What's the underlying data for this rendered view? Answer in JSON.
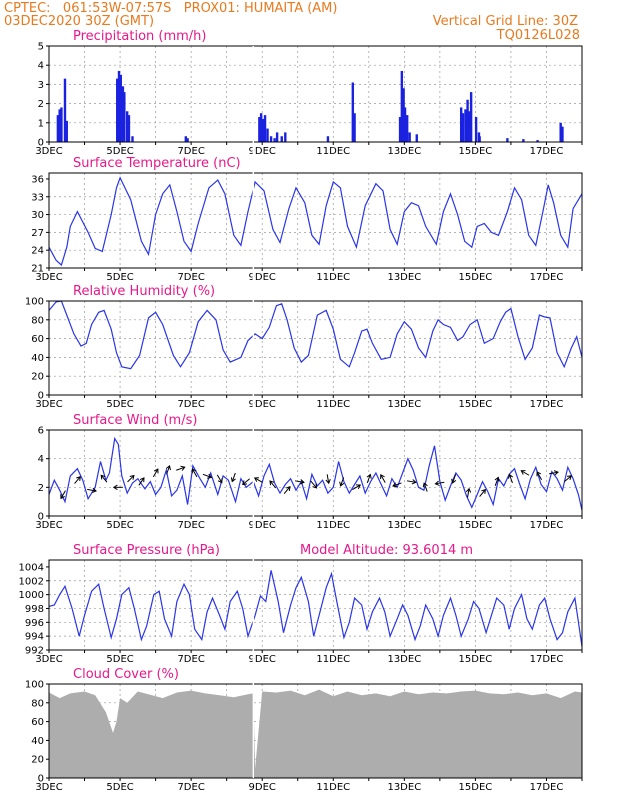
{
  "header": {
    "line1": "CPTEC:   061:53W-07:57S   PROX01: HUMAITA (AM)",
    "line2_left": "03DEC2020 30Z (GMT)",
    "line2_right": "Vertical Grid Line: 30Z",
    "line3_right": "TQ0126L028"
  },
  "colors": {
    "header": "#e87a1e",
    "title": "#e8188a",
    "series": "#2a35e8",
    "cloud": "#adadad"
  },
  "x_tick_labels": [
    "3DEC",
    "5DEC",
    "7DEC",
    "9DEC",
    "11DEC",
    "13DEC",
    "15DEC",
    "17DEC"
  ],
  "chart_data": [
    {
      "type": "bar",
      "title": "Precipitation (mm/h)",
      "ylim": [
        0,
        5
      ],
      "yticks": [
        0,
        1,
        2,
        3,
        4,
        5
      ],
      "xlim": [
        3.0,
        18.0
      ],
      "x": [
        3.25,
        3.3,
        3.35,
        3.45,
        3.5,
        4.92,
        4.97,
        5.02,
        5.08,
        5.12,
        5.2,
        5.25,
        5.35,
        6.85,
        6.9,
        8.92,
        8.97,
        9.02,
        9.08,
        9.15,
        9.25,
        9.35,
        9.42,
        9.55,
        9.65,
        10.85,
        11.55,
        11.6,
        12.88,
        12.93,
        12.98,
        13.02,
        13.08,
        13.15,
        13.35,
        14.6,
        14.65,
        14.72,
        14.78,
        14.82,
        14.88,
        15.02,
        15.1,
        15.12,
        15.9,
        16.35,
        16.75,
        17.4,
        17.45
      ],
      "values": [
        1.4,
        1.7,
        1.8,
        3.3,
        1.1,
        3.3,
        3.7,
        3.5,
        2.9,
        2.6,
        1.6,
        1.4,
        0.3,
        0.3,
        0.2,
        1.3,
        1.5,
        1.2,
        1.4,
        0.7,
        0.3,
        0.2,
        0.5,
        0.3,
        0.5,
        0.3,
        3.1,
        1.5,
        1.3,
        3.7,
        2.8,
        1.8,
        1.4,
        0.5,
        0.4,
        1.8,
        1.5,
        1.7,
        2.2,
        1.6,
        2.6,
        1.3,
        0.5,
        0.3,
        0.2,
        0.15,
        0.1,
        1.0,
        0.8
      ]
    },
    {
      "type": "line",
      "title": "Surface Temperature (nC)",
      "ylim": [
        21,
        37
      ],
      "yticks": [
        21,
        24,
        27,
        30,
        33,
        36
      ],
      "xlim": [
        3.0,
        18.0
      ],
      "x": [
        3.0,
        3.2,
        3.35,
        3.5,
        3.6,
        3.8,
        4.1,
        4.3,
        4.5,
        4.75,
        4.9,
        5.0,
        5.3,
        5.6,
        5.8,
        6.0,
        6.2,
        6.4,
        6.6,
        6.8,
        7.0,
        7.2,
        7.5,
        7.75,
        7.95,
        8.2,
        8.4,
        8.6,
        8.8,
        9.05,
        9.3,
        9.5,
        9.75,
        9.95,
        10.2,
        10.4,
        10.6,
        10.8,
        11.0,
        11.2,
        11.4,
        11.65,
        11.9,
        12.2,
        12.4,
        12.6,
        12.8,
        13.0,
        13.2,
        13.4,
        13.6,
        13.9,
        14.1,
        14.3,
        14.5,
        14.7,
        14.9,
        15.05,
        15.25,
        15.45,
        15.65,
        15.9,
        16.1,
        16.3,
        16.5,
        16.7,
        16.9,
        17.05,
        17.2,
        17.4,
        17.6,
        17.75,
        18.0
      ],
      "values": [
        24.5,
        22.3,
        21.5,
        24.5,
        28.0,
        30.5,
        27.0,
        24.3,
        23.8,
        30.0,
        34.5,
        36.2,
        32.5,
        25.5,
        23.3,
        30.0,
        33.5,
        35.0,
        30.5,
        25.5,
        23.8,
        28.5,
        34.5,
        35.8,
        33.5,
        26.5,
        24.8,
        30.5,
        35.5,
        34.0,
        27.5,
        25.3,
        31.0,
        34.5,
        32.0,
        26.5,
        25.0,
        31.5,
        35.5,
        34.5,
        28.0,
        24.5,
        31.5,
        35.2,
        34.0,
        27.5,
        25.0,
        30.5,
        32.0,
        31.5,
        28.0,
        25.0,
        30.5,
        33.5,
        30.0,
        25.5,
        24.5,
        28.0,
        28.5,
        27.0,
        26.5,
        30.5,
        34.5,
        32.5,
        26.5,
        24.8,
        30.5,
        35.0,
        32.0,
        26.5,
        24.5,
        31.0,
        33.5
      ]
    },
    {
      "type": "line",
      "title": "Relative Humidity (%)",
      "ylim": [
        0,
        100
      ],
      "yticks": [
        0,
        20,
        40,
        60,
        80,
        100
      ],
      "xlim": [
        3.0,
        18.0
      ],
      "x": [
        3.0,
        3.2,
        3.35,
        3.5,
        3.7,
        3.9,
        4.05,
        4.2,
        4.4,
        4.55,
        4.75,
        4.9,
        5.05,
        5.3,
        5.55,
        5.8,
        6.0,
        6.2,
        6.5,
        6.7,
        6.95,
        7.2,
        7.45,
        7.7,
        7.9,
        8.1,
        8.4,
        8.6,
        8.8,
        9.0,
        9.2,
        9.4,
        9.55,
        9.7,
        9.9,
        10.1,
        10.3,
        10.55,
        10.8,
        11.0,
        11.2,
        11.45,
        11.6,
        11.8,
        11.95,
        12.1,
        12.35,
        12.6,
        12.8,
        13.0,
        13.2,
        13.4,
        13.6,
        13.8,
        13.95,
        14.1,
        14.3,
        14.5,
        14.65,
        14.85,
        15.05,
        15.25,
        15.5,
        15.7,
        15.85,
        16.0,
        16.2,
        16.4,
        16.6,
        16.8,
        16.95,
        17.1,
        17.3,
        17.5,
        17.7,
        17.85,
        18.0
      ],
      "values": [
        90,
        99,
        100,
        85,
        65,
        52,
        55,
        75,
        88,
        90,
        70,
        45,
        30,
        28,
        42,
        82,
        88,
        75,
        42,
        30,
        45,
        78,
        90,
        80,
        48,
        35,
        40,
        58,
        65,
        60,
        72,
        95,
        97,
        80,
        50,
        35,
        42,
        85,
        90,
        70,
        38,
        30,
        45,
        68,
        70,
        55,
        38,
        40,
        65,
        78,
        70,
        50,
        40,
        68,
        80,
        75,
        72,
        58,
        62,
        75,
        80,
        55,
        60,
        78,
        88,
        92,
        62,
        38,
        50,
        85,
        83,
        82,
        45,
        30,
        50,
        62,
        40
      ]
    },
    {
      "type": "line",
      "title": "Surface Wind (m/s)",
      "ylim": [
        0,
        6
      ],
      "yticks": [
        0,
        2,
        4,
        6
      ],
      "xlim": [
        3.0,
        18.0
      ],
      "x": [
        3.0,
        3.15,
        3.3,
        3.45,
        3.6,
        3.8,
        3.95,
        4.1,
        4.3,
        4.45,
        4.6,
        4.7,
        4.85,
        4.95,
        5.05,
        5.2,
        5.35,
        5.5,
        5.7,
        5.85,
        6.0,
        6.15,
        6.3,
        6.45,
        6.6,
        6.75,
        6.9,
        7.05,
        7.25,
        7.4,
        7.55,
        7.75,
        7.9,
        8.05,
        8.25,
        8.4,
        8.55,
        8.75,
        8.9,
        9.05,
        9.2,
        9.35,
        9.5,
        9.65,
        9.8,
        9.95,
        10.1,
        10.25,
        10.4,
        10.55,
        10.7,
        10.85,
        11.0,
        11.15,
        11.3,
        11.45,
        11.6,
        11.75,
        11.9,
        12.05,
        12.2,
        12.35,
        12.5,
        12.65,
        12.8,
        12.95,
        13.1,
        13.25,
        13.4,
        13.55,
        13.7,
        13.85,
        14.0,
        14.15,
        14.3,
        14.45,
        14.6,
        14.75,
        14.9,
        15.05,
        15.2,
        15.35,
        15.5,
        15.65,
        15.8,
        15.95,
        16.1,
        16.25,
        16.4,
        16.55,
        16.7,
        16.85,
        17.0,
        17.15,
        17.3,
        17.45,
        17.6,
        17.75,
        17.9,
        18.0
      ],
      "values": [
        1.5,
        2.5,
        1.8,
        1.0,
        2.8,
        3.3,
        2.5,
        1.2,
        2.0,
        3.8,
        2.5,
        3.0,
        5.4,
        5.0,
        2.8,
        1.6,
        2.3,
        2.6,
        1.9,
        2.4,
        1.5,
        2.0,
        3.2,
        1.4,
        1.8,
        2.8,
        0.8,
        3.5,
        2.6,
        2.0,
        3.0,
        1.5,
        2.8,
        2.5,
        1.0,
        2.6,
        2.0,
        2.4,
        1.4,
        2.8,
        3.6,
        2.3,
        1.6,
        2.2,
        2.6,
        1.8,
        2.4,
        1.2,
        2.9,
        2.1,
        2.5,
        1.6,
        2.0,
        3.8,
        2.4,
        1.6,
        2.2,
        2.8,
        1.6,
        2.4,
        3.0,
        2.2,
        1.4,
        2.6,
        2.0,
        3.0,
        4.0,
        3.2,
        2.0,
        1.8,
        3.5,
        4.9,
        2.4,
        1.1,
        2.1,
        3.0,
        2.5,
        1.4,
        0.6,
        1.5,
        2.4,
        1.7,
        0.8,
        2.6,
        2.1,
        2.9,
        3.3,
        2.2,
        1.2,
        2.6,
        3.4,
        2.2,
        1.7,
        3.1,
        2.6,
        1.8,
        3.4,
        2.6,
        1.5,
        0.4
      ]
    },
    {
      "type": "line",
      "title": "Surface Pressure (hPa)",
      "annotation": "Model Altitude: 93.6014 m",
      "ylim": [
        992,
        1005
      ],
      "yticks": [
        992,
        994,
        996,
        998,
        1000,
        1002,
        1004
      ],
      "xlim": [
        3.0,
        18.0
      ],
      "x": [
        3.0,
        3.15,
        3.3,
        3.45,
        3.65,
        3.85,
        4.0,
        4.2,
        4.4,
        4.55,
        4.75,
        4.9,
        5.05,
        5.25,
        5.4,
        5.6,
        5.75,
        5.95,
        6.1,
        6.25,
        6.45,
        6.6,
        6.8,
        6.95,
        7.1,
        7.3,
        7.45,
        7.6,
        7.8,
        7.95,
        8.1,
        8.3,
        8.45,
        8.6,
        8.8,
        8.95,
        9.1,
        9.25,
        9.45,
        9.6,
        9.8,
        9.95,
        10.1,
        10.3,
        10.45,
        10.6,
        10.8,
        10.95,
        11.1,
        11.3,
        11.45,
        11.6,
        11.8,
        11.95,
        12.1,
        12.3,
        12.45,
        12.6,
        12.8,
        12.95,
        13.1,
        13.3,
        13.45,
        13.6,
        13.8,
        13.95,
        14.1,
        14.3,
        14.45,
        14.6,
        14.8,
        14.95,
        15.1,
        15.3,
        15.45,
        15.6,
        15.8,
        15.95,
        16.1,
        16.3,
        16.45,
        16.6,
        16.8,
        16.95,
        17.1,
        17.3,
        17.45,
        17.6,
        17.8,
        18.0
      ],
      "values": [
        998.3,
        998.5,
        1000.0,
        1001.2,
        998.0,
        994.0,
        997.0,
        1000.5,
        1001.5,
        998.0,
        993.8,
        996.5,
        1000.0,
        1001.0,
        998.0,
        993.5,
        995.5,
        1000.0,
        1000.5,
        996.5,
        994.0,
        999.0,
        1001.5,
        1000.0,
        995.0,
        993.5,
        997.5,
        999.5,
        997.0,
        995.0,
        999.0,
        1000.5,
        998.0,
        994.0,
        997.0,
        999.8,
        999.0,
        1003.5,
        999.0,
        994.5,
        998.5,
        1001.0,
        1002.5,
        999.0,
        994.0,
        997.0,
        1001.0,
        1003.0,
        999.0,
        993.8,
        996.0,
        999.5,
        998.5,
        995.0,
        997.5,
        999.5,
        997.5,
        994.0,
        996.5,
        998.5,
        997.0,
        993.5,
        995.5,
        998.5,
        996.5,
        994.0,
        997.0,
        999.5,
        997.0,
        994.0,
        996.5,
        999.0,
        998.0,
        994.5,
        997.0,
        999.5,
        998.5,
        995.0,
        998.0,
        1000.0,
        996.5,
        995.0,
        998.5,
        999.5,
        996.5,
        993.5,
        994.5,
        997.5,
        999.5,
        992.5
      ]
    },
    {
      "type": "area",
      "title": "Cloud Cover (%)",
      "ylim": [
        0,
        100
      ],
      "yticks": [
        0,
        20,
        40,
        60,
        80,
        100
      ],
      "xlim": [
        3.0,
        18.0
      ],
      "x": [
        3.0,
        3.3,
        3.6,
        4.0,
        4.3,
        4.6,
        4.8,
        4.9,
        5.0,
        5.2,
        5.5,
        5.9,
        6.2,
        6.6,
        7.0,
        7.4,
        7.8,
        8.2,
        8.6,
        8.75,
        8.8,
        9.0,
        9.4,
        9.8,
        10.2,
        10.6,
        11.0,
        11.4,
        11.8,
        12.2,
        12.6,
        13.0,
        13.4,
        13.8,
        14.2,
        14.6,
        15.0,
        15.4,
        15.8,
        16.2,
        16.6,
        17.0,
        17.4,
        17.8,
        18.0
      ],
      "values": [
        91,
        85,
        90,
        92,
        88,
        70,
        48,
        60,
        85,
        80,
        92,
        88,
        85,
        91,
        93,
        90,
        88,
        86,
        89,
        90,
        10,
        92,
        91,
        93,
        88,
        94,
        87,
        92,
        88,
        90,
        87,
        92,
        89,
        91,
        90,
        92,
        93,
        90,
        89,
        91,
        88,
        90,
        85,
        92,
        91
      ]
    },
    {
      "type": "scatter",
      "title": "Surface Wind Direction",
      "x": [
        3.4,
        3.8,
        4.2,
        4.55,
        4.95,
        5.3,
        5.6,
        6.0,
        6.35,
        6.7,
        7.1,
        7.45,
        7.8,
        8.2,
        8.55,
        8.9,
        9.3,
        9.7,
        10.05,
        10.45,
        10.85,
        11.25,
        11.65,
        12.0,
        12.4,
        12.8,
        13.2,
        13.6,
        14.0,
        14.4,
        14.8,
        15.2,
        15.6,
        16.0,
        16.4,
        16.8,
        17.2,
        17.6
      ],
      "values": [
        1.5,
        2.5,
        1.8,
        2.6,
        2.0,
        2.6,
        2.4,
        3.0,
        3.2,
        3.3,
        3.0,
        2.8,
        2.6,
        2.7,
        2.4,
        2.5,
        2.2,
        1.8,
        2.4,
        2.2,
        2.6,
        2.4,
        2.0,
        2.6,
        2.6,
        2.2,
        2.4,
        2.0,
        2.3,
        2.6,
        1.6,
        1.6,
        2.4,
        2.6,
        3.0,
        2.8,
        3.0,
        2.6
      ],
      "direction_deg": [
        210,
        40,
        100,
        320,
        270,
        45,
        35,
        30,
        20,
        70,
        330,
        110,
        150,
        200,
        230,
        300,
        320,
        40,
        100,
        140,
        170,
        200,
        60,
        20,
        330,
        250,
        100,
        340,
        260,
        200,
        10,
        40,
        20,
        340,
        300,
        330,
        80,
        50
      ]
    }
  ]
}
